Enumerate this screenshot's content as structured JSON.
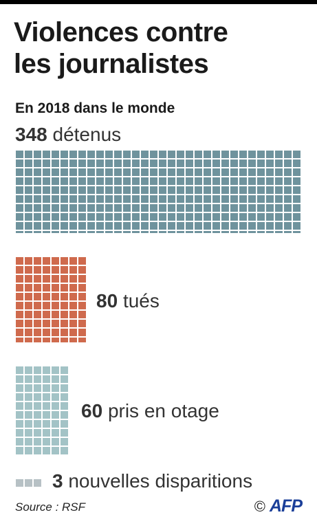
{
  "title_line1": "Violences contre",
  "title_line2": "les journalistes",
  "subtitle": "En 2018 dans le monde",
  "source": "Source : RSF",
  "copyright": "©",
  "logo": "AFP",
  "chart_data": {
    "type": "waffle",
    "unit": "1 square = 1 journalist",
    "categories": [
      {
        "value": 348,
        "label": "détenus",
        "color": "#6f939d"
      },
      {
        "value": 80,
        "label": "tués",
        "color": "#cf6a4d"
      },
      {
        "value": 60,
        "label": "pris en otage",
        "color": "#a3c3c6"
      },
      {
        "value": 3,
        "label": "nouvelles disparitions",
        "color": "#b7c1c5"
      }
    ]
  }
}
